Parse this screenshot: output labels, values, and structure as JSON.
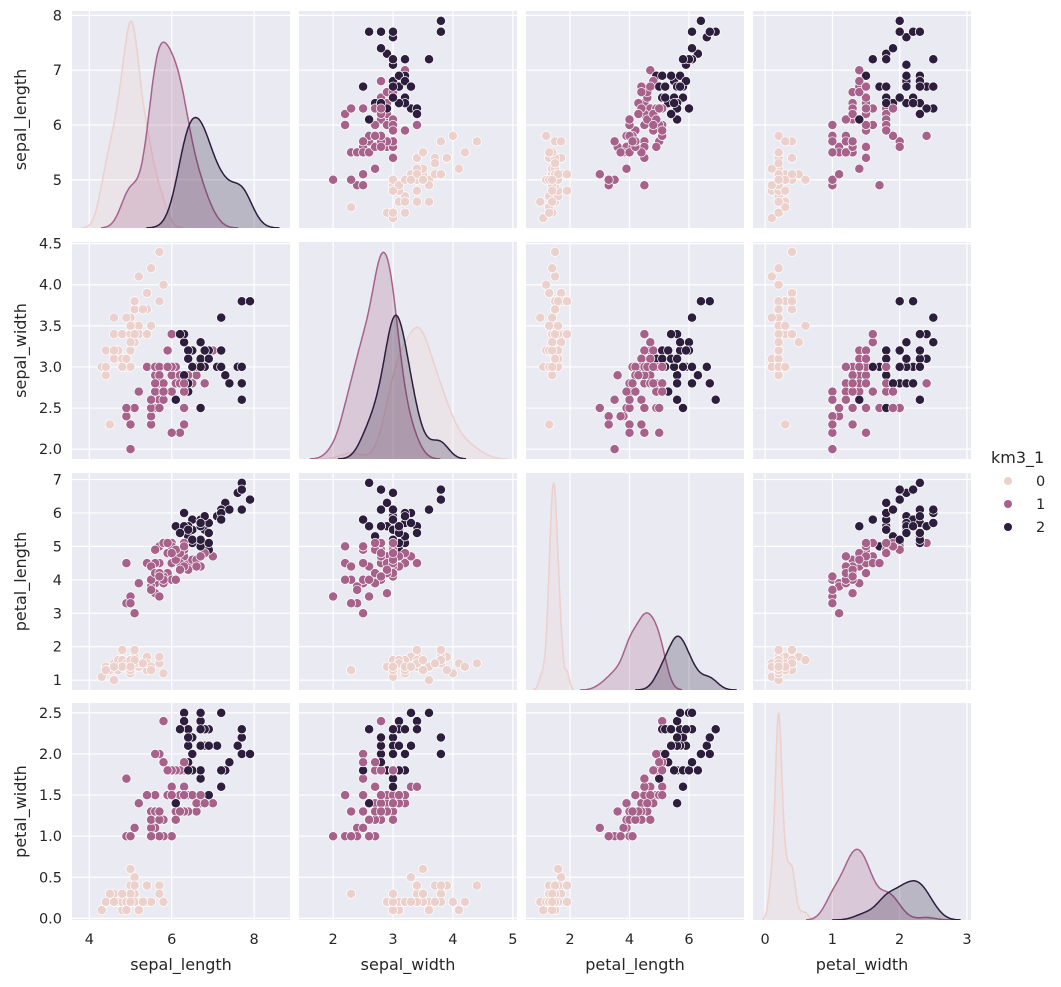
{
  "chart_data": {
    "type": "scatter",
    "subtype": "pairplot",
    "variables": [
      "sepal_length",
      "sepal_width",
      "petal_length",
      "petal_width"
    ],
    "diagonal": "kde",
    "hue": "km3_1",
    "legend": {
      "title": "km3_1",
      "placement": "right",
      "entries": [
        "0",
        "1",
        "2"
      ]
    },
    "colors": {
      "0": "#ecd0cb",
      "1": "#a7628b",
      "2": "#2d1e3e",
      "background": "#eaeaf2",
      "grid": "#ffffff"
    },
    "grid": true,
    "x_ticks": [
      [
        "4",
        "6",
        "8"
      ],
      [
        "2",
        "3",
        "4",
        "5"
      ],
      [
        "2",
        "4",
        "6"
      ],
      [
        "0",
        "1",
        "2",
        "3"
      ]
    ],
    "y_ticks": [
      [
        "5",
        "6",
        "7",
        "8"
      ],
      [
        "2.0",
        "2.5",
        "3.0",
        "3.5",
        "4.0",
        "4.5"
      ],
      [
        "1",
        "2",
        "3",
        "4",
        "5",
        "6",
        "7"
      ],
      [
        "0.0",
        "0.5",
        "1.0",
        "1.5",
        "2.0",
        "2.5"
      ]
    ],
    "x_ranges": [
      [
        3.58,
        8.87
      ],
      [
        1.43,
        5.07
      ],
      [
        0.52,
        7.85
      ],
      [
        -0.18,
        3.06
      ]
    ],
    "y_ranges": [
      [
        4.12,
        8.08
      ],
      [
        1.88,
        4.52
      ],
      [
        0.705,
        7.195
      ],
      [
        -0.02,
        2.62
      ]
    ],
    "points_columns": [
      "sepal_length",
      "sepal_width",
      "petal_length",
      "petal_width",
      "km3_1"
    ],
    "points": [
      [
        5.1,
        3.5,
        1.4,
        0.2,
        0
      ],
      [
        4.9,
        3.0,
        1.4,
        0.2,
        0
      ],
      [
        4.7,
        3.2,
        1.3,
        0.2,
        0
      ],
      [
        4.6,
        3.1,
        1.5,
        0.2,
        0
      ],
      [
        5.0,
        3.6,
        1.4,
        0.2,
        0
      ],
      [
        5.4,
        3.9,
        1.7,
        0.4,
        0
      ],
      [
        4.6,
        3.4,
        1.4,
        0.3,
        0
      ],
      [
        5.0,
        3.4,
        1.5,
        0.2,
        0
      ],
      [
        4.4,
        2.9,
        1.4,
        0.2,
        0
      ],
      [
        4.9,
        3.1,
        1.5,
        0.1,
        0
      ],
      [
        5.4,
        3.7,
        1.5,
        0.2,
        0
      ],
      [
        4.8,
        3.4,
        1.6,
        0.2,
        0
      ],
      [
        4.8,
        3.0,
        1.4,
        0.1,
        0
      ],
      [
        4.3,
        3.0,
        1.1,
        0.1,
        0
      ],
      [
        5.8,
        4.0,
        1.2,
        0.2,
        0
      ],
      [
        5.7,
        4.4,
        1.5,
        0.4,
        0
      ],
      [
        5.4,
        3.9,
        1.3,
        0.4,
        0
      ],
      [
        5.1,
        3.5,
        1.4,
        0.3,
        0
      ],
      [
        5.7,
        3.8,
        1.7,
        0.3,
        0
      ],
      [
        5.1,
        3.8,
        1.5,
        0.3,
        0
      ],
      [
        5.4,
        3.4,
        1.7,
        0.2,
        0
      ],
      [
        5.1,
        3.7,
        1.5,
        0.4,
        0
      ],
      [
        4.6,
        3.6,
        1.0,
        0.2,
        0
      ],
      [
        5.1,
        3.3,
        1.7,
        0.5,
        0
      ],
      [
        4.8,
        3.4,
        1.9,
        0.2,
        0
      ],
      [
        5.0,
        3.0,
        1.6,
        0.2,
        0
      ],
      [
        5.0,
        3.4,
        1.6,
        0.4,
        0
      ],
      [
        5.2,
        3.5,
        1.5,
        0.2,
        0
      ],
      [
        5.2,
        3.4,
        1.4,
        0.2,
        0
      ],
      [
        4.7,
        3.2,
        1.6,
        0.2,
        0
      ],
      [
        4.8,
        3.1,
        1.6,
        0.2,
        0
      ],
      [
        5.4,
        3.4,
        1.5,
        0.4,
        0
      ],
      [
        5.2,
        4.1,
        1.5,
        0.1,
        0
      ],
      [
        5.5,
        4.2,
        1.4,
        0.2,
        0
      ],
      [
        4.9,
        3.1,
        1.5,
        0.2,
        0
      ],
      [
        5.0,
        3.2,
        1.2,
        0.2,
        0
      ],
      [
        5.5,
        3.5,
        1.3,
        0.2,
        0
      ],
      [
        4.9,
        3.6,
        1.4,
        0.1,
        0
      ],
      [
        4.4,
        3.0,
        1.3,
        0.2,
        0
      ],
      [
        5.1,
        3.4,
        1.5,
        0.2,
        0
      ],
      [
        5.0,
        3.5,
        1.3,
        0.3,
        0
      ],
      [
        4.5,
        2.3,
        1.3,
        0.3,
        0
      ],
      [
        4.4,
        3.2,
        1.3,
        0.2,
        0
      ],
      [
        5.0,
        3.5,
        1.6,
        0.6,
        0
      ],
      [
        5.1,
        3.8,
        1.9,
        0.4,
        0
      ],
      [
        4.8,
        3.0,
        1.4,
        0.3,
        0
      ],
      [
        5.1,
        3.8,
        1.6,
        0.2,
        0
      ],
      [
        4.6,
        3.2,
        1.4,
        0.2,
        0
      ],
      [
        5.3,
        3.7,
        1.5,
        0.2,
        0
      ],
      [
        5.0,
        3.3,
        1.4,
        0.2,
        0
      ],
      [
        7.0,
        3.2,
        4.7,
        1.4,
        1
      ],
      [
        6.4,
        3.2,
        4.5,
        1.5,
        1
      ],
      [
        6.9,
        3.1,
        4.9,
        1.5,
        2
      ],
      [
        5.5,
        2.3,
        4.0,
        1.3,
        1
      ],
      [
        6.5,
        2.8,
        4.6,
        1.5,
        1
      ],
      [
        5.7,
        2.8,
        4.5,
        1.3,
        1
      ],
      [
        6.3,
        3.3,
        4.7,
        1.6,
        1
      ],
      [
        4.9,
        2.4,
        3.3,
        1.0,
        1
      ],
      [
        6.6,
        2.9,
        4.6,
        1.3,
        1
      ],
      [
        5.2,
        2.7,
        3.9,
        1.4,
        1
      ],
      [
        5.0,
        2.0,
        3.5,
        1.0,
        1
      ],
      [
        5.9,
        3.0,
        4.2,
        1.5,
        1
      ],
      [
        6.0,
        2.2,
        4.0,
        1.0,
        1
      ],
      [
        6.1,
        2.9,
        4.7,
        1.4,
        1
      ],
      [
        5.6,
        2.9,
        3.6,
        1.3,
        1
      ],
      [
        6.7,
        3.1,
        4.4,
        1.4,
        1
      ],
      [
        5.6,
        3.0,
        4.5,
        1.5,
        1
      ],
      [
        5.8,
        2.7,
        4.1,
        1.0,
        1
      ],
      [
        6.2,
        2.2,
        4.5,
        1.5,
        1
      ],
      [
        5.6,
        2.5,
        3.9,
        1.1,
        1
      ],
      [
        5.9,
        3.2,
        4.8,
        1.8,
        1
      ],
      [
        6.1,
        2.8,
        4.0,
        1.3,
        1
      ],
      [
        6.3,
        2.5,
        4.9,
        1.5,
        1
      ],
      [
        6.1,
        2.8,
        4.7,
        1.2,
        1
      ],
      [
        6.4,
        2.9,
        4.3,
        1.3,
        1
      ],
      [
        6.6,
        3.0,
        4.4,
        1.4,
        1
      ],
      [
        6.8,
        2.8,
        4.8,
        1.4,
        1
      ],
      [
        6.7,
        3.0,
        5.0,
        1.7,
        2
      ],
      [
        6.0,
        2.9,
        4.5,
        1.5,
        1
      ],
      [
        5.7,
        2.6,
        3.5,
        1.0,
        1
      ],
      [
        5.5,
        2.4,
        3.8,
        1.1,
        1
      ],
      [
        5.5,
        2.4,
        3.7,
        1.0,
        1
      ],
      [
        5.8,
        2.7,
        3.9,
        1.2,
        1
      ],
      [
        6.0,
        2.7,
        5.1,
        1.6,
        1
      ],
      [
        5.4,
        3.0,
        4.5,
        1.5,
        1
      ],
      [
        6.0,
        3.4,
        4.5,
        1.6,
        1
      ],
      [
        6.7,
        3.1,
        4.7,
        1.5,
        1
      ],
      [
        6.3,
        2.3,
        4.4,
        1.3,
        1
      ],
      [
        5.6,
        3.0,
        4.1,
        1.3,
        1
      ],
      [
        5.5,
        2.5,
        4.0,
        1.3,
        1
      ],
      [
        5.5,
        2.6,
        4.4,
        1.2,
        1
      ],
      [
        6.1,
        3.0,
        4.6,
        1.4,
        1
      ],
      [
        5.8,
        2.6,
        4.0,
        1.2,
        1
      ],
      [
        5.0,
        2.3,
        3.3,
        1.0,
        1
      ],
      [
        5.6,
        2.7,
        4.2,
        1.3,
        1
      ],
      [
        5.7,
        3.0,
        4.2,
        1.2,
        1
      ],
      [
        5.7,
        2.9,
        4.2,
        1.3,
        1
      ],
      [
        6.2,
        2.9,
        4.3,
        1.3,
        1
      ],
      [
        5.1,
        2.5,
        3.0,
        1.1,
        1
      ],
      [
        5.7,
        2.8,
        4.1,
        1.3,
        1
      ],
      [
        6.3,
        3.3,
        6.0,
        2.5,
        2
      ],
      [
        5.8,
        2.7,
        5.1,
        1.9,
        1
      ],
      [
        7.1,
        3.0,
        5.9,
        2.1,
        2
      ],
      [
        6.3,
        2.9,
        5.6,
        1.8,
        2
      ],
      [
        6.5,
        3.0,
        5.8,
        2.2,
        2
      ],
      [
        7.6,
        3.0,
        6.6,
        2.1,
        2
      ],
      [
        4.9,
        2.5,
        4.5,
        1.7,
        1
      ],
      [
        7.3,
        2.9,
        6.3,
        1.8,
        2
      ],
      [
        6.7,
        2.5,
        5.8,
        1.8,
        2
      ],
      [
        7.2,
        3.6,
        6.1,
        2.5,
        2
      ],
      [
        6.5,
        3.2,
        5.1,
        2.0,
        2
      ],
      [
        6.4,
        2.7,
        5.3,
        1.9,
        2
      ],
      [
        6.8,
        3.0,
        5.5,
        2.1,
        2
      ],
      [
        5.7,
        2.5,
        5.0,
        2.0,
        1
      ],
      [
        5.8,
        2.8,
        5.1,
        2.4,
        1
      ],
      [
        6.4,
        3.2,
        5.3,
        2.3,
        2
      ],
      [
        6.5,
        3.0,
        5.5,
        1.8,
        2
      ],
      [
        7.7,
        3.8,
        6.7,
        2.2,
        2
      ],
      [
        7.7,
        2.6,
        6.9,
        2.3,
        2
      ],
      [
        6.0,
        2.2,
        5.0,
        1.5,
        1
      ],
      [
        6.9,
        3.2,
        5.7,
        2.3,
        2
      ],
      [
        5.6,
        2.8,
        4.9,
        2.0,
        1
      ],
      [
        7.7,
        2.8,
        6.7,
        2.0,
        2
      ],
      [
        6.3,
        2.7,
        4.9,
        1.8,
        1
      ],
      [
        6.7,
        3.3,
        5.7,
        2.1,
        2
      ],
      [
        7.2,
        3.2,
        6.0,
        1.8,
        2
      ],
      [
        6.2,
        2.8,
        4.8,
        1.8,
        1
      ],
      [
        6.1,
        3.0,
        4.9,
        1.8,
        1
      ],
      [
        6.4,
        2.8,
        5.6,
        2.1,
        2
      ],
      [
        7.2,
        3.0,
        5.8,
        1.6,
        2
      ],
      [
        7.4,
        2.8,
        6.1,
        1.9,
        2
      ],
      [
        7.9,
        3.8,
        6.4,
        2.0,
        2
      ],
      [
        6.4,
        2.8,
        5.6,
        2.2,
        2
      ],
      [
        6.3,
        2.8,
        5.1,
        1.5,
        1
      ],
      [
        6.1,
        2.6,
        5.6,
        1.4,
        2
      ],
      [
        7.7,
        3.0,
        6.1,
        2.3,
        2
      ],
      [
        6.3,
        3.4,
        5.6,
        2.4,
        2
      ],
      [
        6.4,
        3.1,
        5.5,
        1.8,
        2
      ],
      [
        6.0,
        3.0,
        4.8,
        1.8,
        1
      ],
      [
        6.9,
        3.1,
        5.4,
        2.1,
        2
      ],
      [
        6.7,
        3.1,
        5.6,
        2.4,
        2
      ],
      [
        6.9,
        3.1,
        5.1,
        2.3,
        2
      ],
      [
        5.8,
        2.7,
        5.1,
        1.9,
        1
      ],
      [
        6.8,
        3.2,
        5.9,
        2.3,
        2
      ],
      [
        6.7,
        3.3,
        5.7,
        2.5,
        2
      ],
      [
        6.7,
        3.0,
        5.2,
        2.3,
        2
      ],
      [
        6.3,
        2.5,
        5.0,
        1.9,
        1
      ],
      [
        6.5,
        3.0,
        5.2,
        2.0,
        2
      ],
      [
        6.2,
        3.4,
        5.4,
        2.3,
        2
      ],
      [
        5.9,
        3.0,
        5.1,
        1.8,
        1
      ]
    ]
  }
}
